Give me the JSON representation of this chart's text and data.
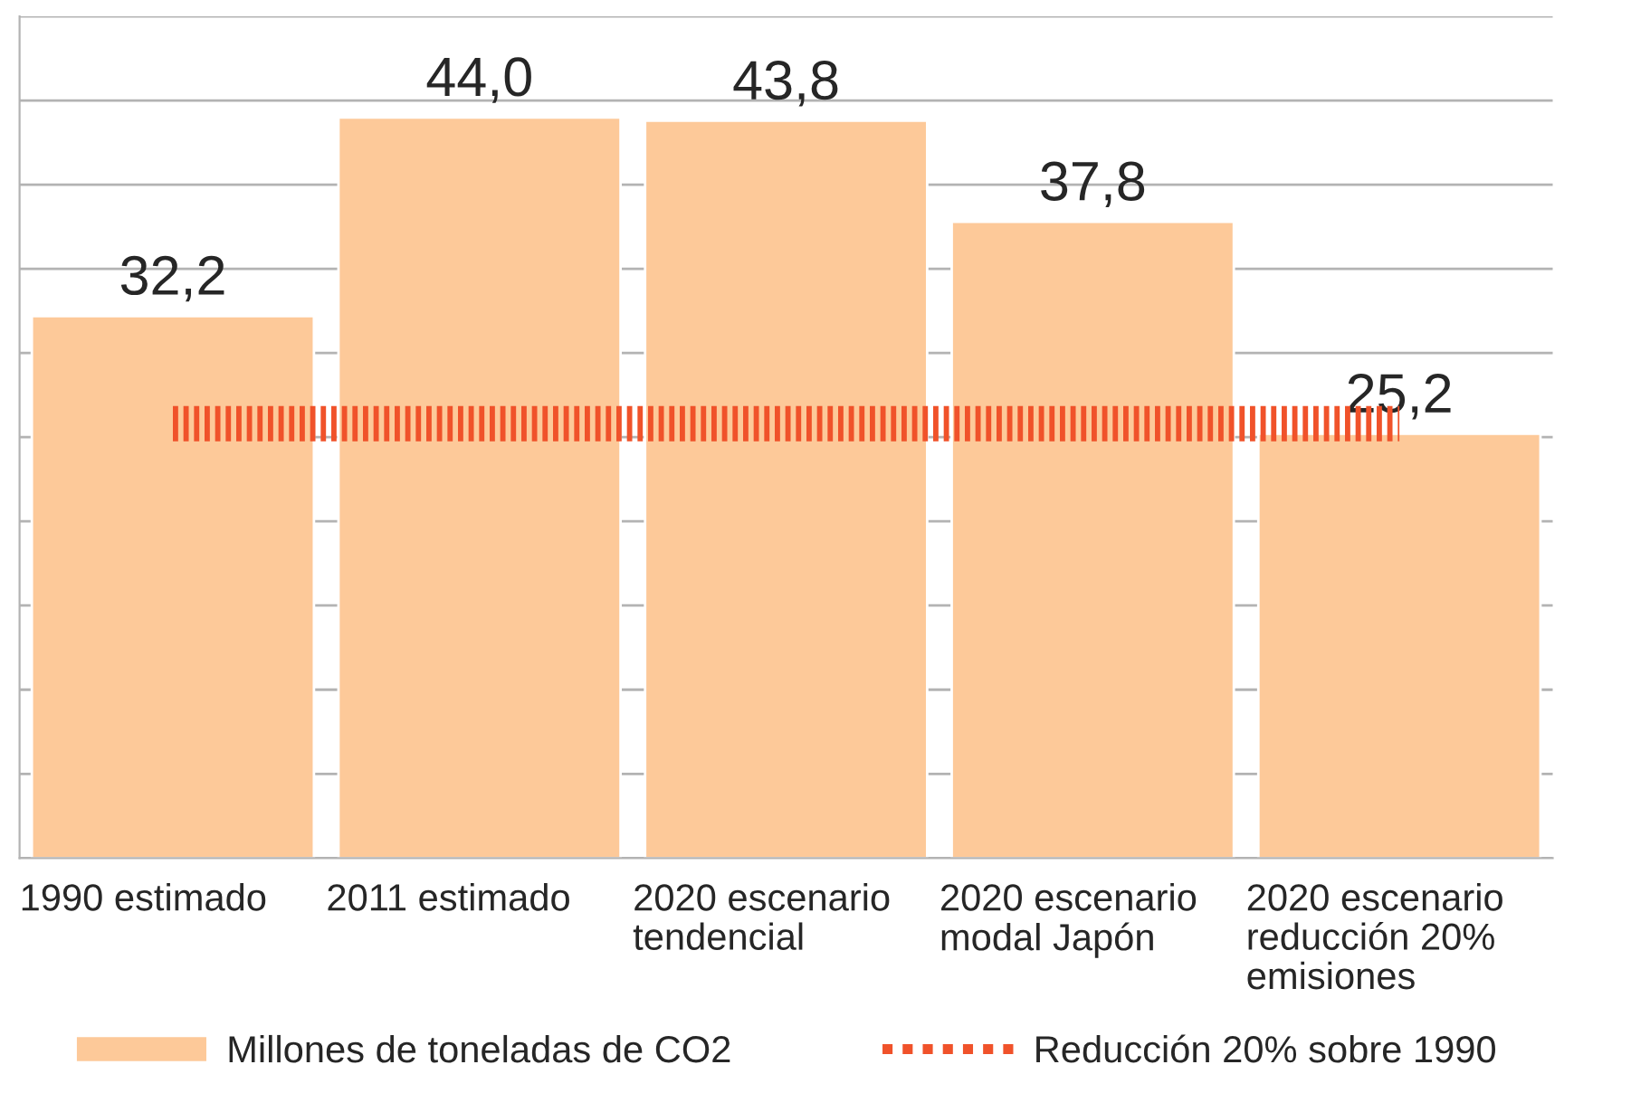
{
  "chart_data": {
    "type": "bar",
    "categories": [
      "1990 estimado",
      "2011 estimado",
      "2020 escenario\ntendencial",
      "2020 escenario\nmodal Japón",
      "2020 escenario\nreducción 20%\nemisiones"
    ],
    "series": [
      {
        "name": "Millones de toneladas de CO2",
        "color": "#fdc999",
        "values": [
          32.2,
          44.0,
          43.8,
          37.8,
          25.2
        ],
        "value_labels": [
          "32,2",
          "44,0",
          "43,8",
          "37,8",
          "25,2"
        ]
      },
      {
        "name": "Reducción 20% sobre 1990",
        "type": "line",
        "color": "#f0522a",
        "line_style": "dotted",
        "marker": "none",
        "values": [
          25.8,
          25.8,
          25.8,
          25.8,
          25.8
        ]
      }
    ],
    "ylim": [
      0,
      50
    ],
    "yticks": [
      {
        "value": 0,
        "label": null
      },
      {
        "value": 5,
        "label": null
      },
      {
        "value": 10,
        "label": null
      },
      {
        "value": 15,
        "label": null
      },
      {
        "value": 20,
        "label": null
      },
      {
        "value": 25,
        "label": null
      },
      {
        "value": 30,
        "label": null
      },
      {
        "value": 35,
        "label": null
      },
      {
        "value": 40,
        "label": null
      },
      {
        "value": 45,
        "label": null
      },
      {
        "value": 50,
        "label": null
      }
    ],
    "tick_labels": "x",
    "grid": "y",
    "legend": "bottom"
  }
}
